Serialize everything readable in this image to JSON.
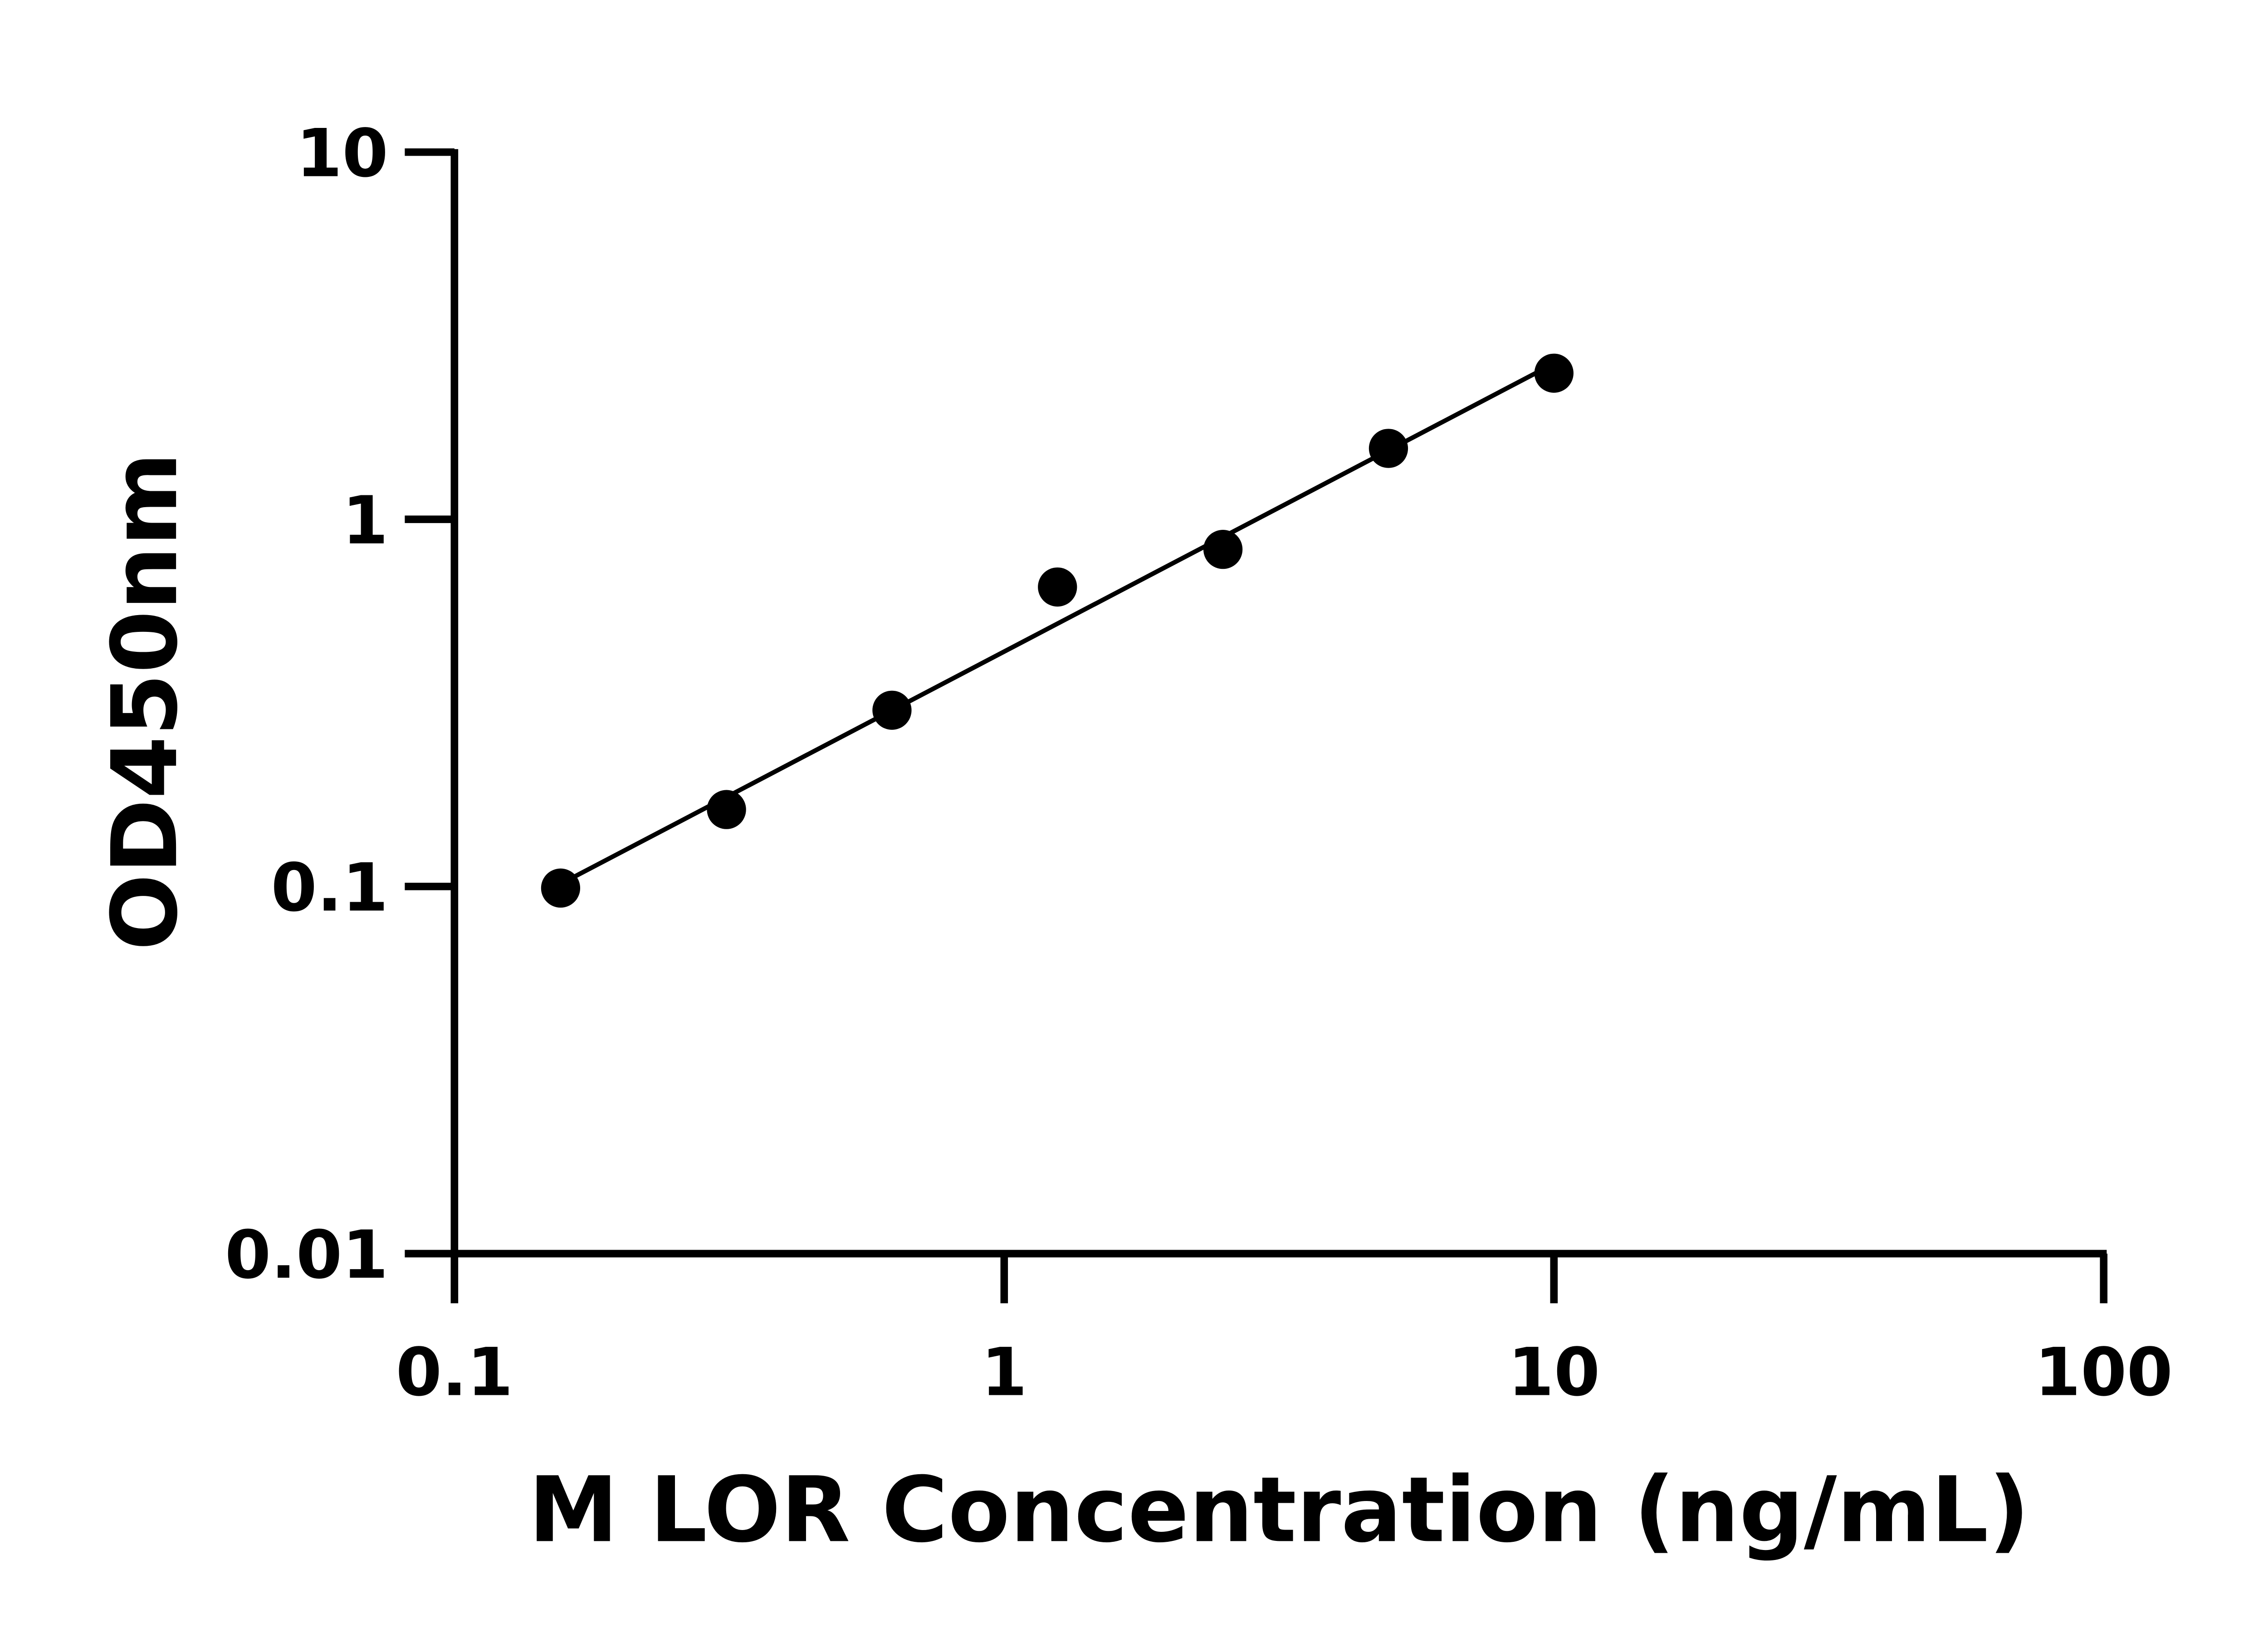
{
  "chart_data": {
    "type": "scatter",
    "xlabel": "M LOR Concentration (ng/mL)",
    "ylabel": "OD450nm",
    "xscale": "log",
    "yscale": "log",
    "xlim": [
      0.1,
      100
    ],
    "ylim": [
      0.01,
      10
    ],
    "xticks": [
      "0.1",
      "1",
      "10",
      "100"
    ],
    "yticks": [
      "0.01",
      "0.1",
      "1",
      "10"
    ],
    "grid": false,
    "points": [
      {
        "x": 0.156,
        "y": 0.099
      },
      {
        "x": 0.3125,
        "y": 0.162
      },
      {
        "x": 0.625,
        "y": 0.302
      },
      {
        "x": 1.25,
        "y": 0.654
      },
      {
        "x": 2.5,
        "y": 0.828
      },
      {
        "x": 5,
        "y": 1.56
      },
      {
        "x": 10,
        "y": 2.5
      }
    ],
    "fit_line": "log-log linear fit",
    "marker_color": "#000000",
    "line_color": "#000000"
  }
}
